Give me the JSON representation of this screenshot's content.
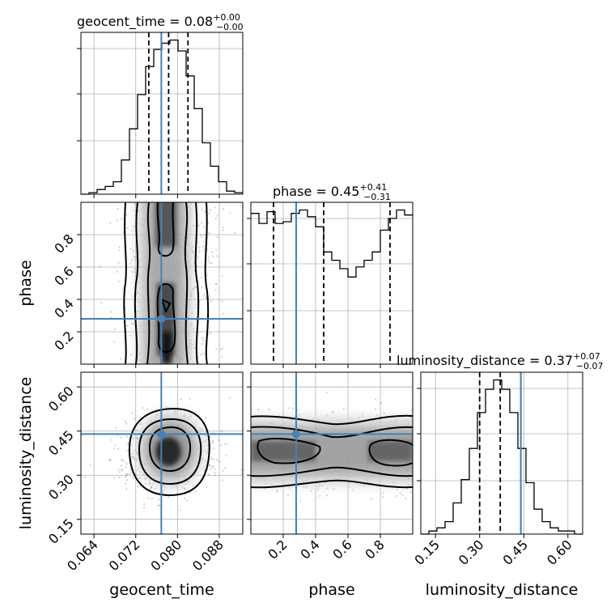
{
  "chart_data": {
    "type": "corner",
    "parameters": [
      "geocent_time",
      "phase",
      "luminosity_distance"
    ],
    "truths": {
      "geocent_time": 0.0769,
      "phase": 0.28,
      "luminosity_distance": 0.44
    },
    "colors": {
      "truth": "#4682b4",
      "hist": "#000000",
      "grid": "#b0b0b0"
    },
    "titles": [
      {
        "param": "geocent_time",
        "text": "geocent_time = 0.08",
        "plus": "+0.00",
        "minus": "−0.00"
      },
      {
        "param": "phase",
        "text": "phase = 0.45",
        "plus": "+0.41",
        "minus": "−0.31"
      },
      {
        "param": "luminosity_distance",
        "text": "luminosity_distance = 0.37",
        "plus": "+0.07",
        "minus": "−0.07"
      }
    ],
    "axis_labels": {
      "geocent_time": "geocent_time",
      "phase": "phase",
      "luminosity_distance": "luminosity_distance"
    },
    "ranges": {
      "geocent_time": [
        0.0615,
        0.0925
      ],
      "phase": [
        0.0,
        1.0
      ],
      "luminosity_distance": [
        0.1,
        0.65
      ]
    },
    "ticks": {
      "geocent_time": {
        "values": [
          0.064,
          0.072,
          0.08,
          0.088
        ],
        "labels": [
          "0.064",
          "0.072",
          "0.080",
          "0.088"
        ]
      },
      "phase": {
        "values": [
          0.2,
          0.4,
          0.6,
          0.8
        ],
        "labels": [
          "0.2",
          "0.4",
          "0.6",
          "0.8"
        ]
      },
      "luminosity_distance": {
        "values": [
          0.15,
          0.3,
          0.45,
          0.6
        ],
        "labels": [
          "0.15",
          "0.30",
          "0.45",
          "0.60"
        ]
      }
    },
    "quantiles": {
      "geocent_time": [
        0.0745,
        0.0783,
        0.082
      ],
      "phase": [
        0.14,
        0.45,
        0.86
      ],
      "luminosity_distance": [
        0.3,
        0.37,
        0.44
      ]
    },
    "histograms": {
      "geocent_time": {
        "edges": [
          0.0615,
          0.06305,
          0.0646,
          0.06615,
          0.0677,
          0.06925,
          0.0708,
          0.07235,
          0.0739,
          0.07545,
          0.077,
          0.07855,
          0.0801,
          0.08165,
          0.0832,
          0.08475,
          0.0863,
          0.08785,
          0.0894,
          0.09095,
          0.0925
        ],
        "counts": [
          0.0,
          0.01,
          0.03,
          0.05,
          0.08,
          0.22,
          0.42,
          0.64,
          0.82,
          0.93,
          0.97,
          0.99,
          0.92,
          0.76,
          0.55,
          0.33,
          0.18,
          0.08,
          0.02,
          0.01
        ]
      },
      "phase": {
        "edges": [
          0.0,
          0.05,
          0.1,
          0.15,
          0.2,
          0.25,
          0.3,
          0.35,
          0.4,
          0.45,
          0.5,
          0.55,
          0.6,
          0.65,
          0.7,
          0.75,
          0.8,
          0.85,
          0.9,
          0.95,
          1.0
        ],
        "counts": [
          0.9,
          0.84,
          0.91,
          0.84,
          0.85,
          0.9,
          0.92,
          0.88,
          0.82,
          0.67,
          0.62,
          0.57,
          0.52,
          0.58,
          0.62,
          0.67,
          0.8,
          0.87,
          0.92,
          0.89
        ]
      },
      "luminosity_distance": {
        "edges": [
          0.1,
          0.1275,
          0.155,
          0.1825,
          0.21,
          0.2375,
          0.265,
          0.2925,
          0.32,
          0.3475,
          0.375,
          0.4025,
          0.43,
          0.4575,
          0.485,
          0.5125,
          0.54,
          0.5675,
          0.595,
          0.6225,
          0.65
        ],
        "counts": [
          0.0,
          0.02,
          0.04,
          0.08,
          0.2,
          0.35,
          0.55,
          0.78,
          0.93,
          0.99,
          0.93,
          0.78,
          0.55,
          0.33,
          0.16,
          0.08,
          0.04,
          0.02,
          0.02,
          0.0
        ]
      }
    },
    "grid": true
  }
}
